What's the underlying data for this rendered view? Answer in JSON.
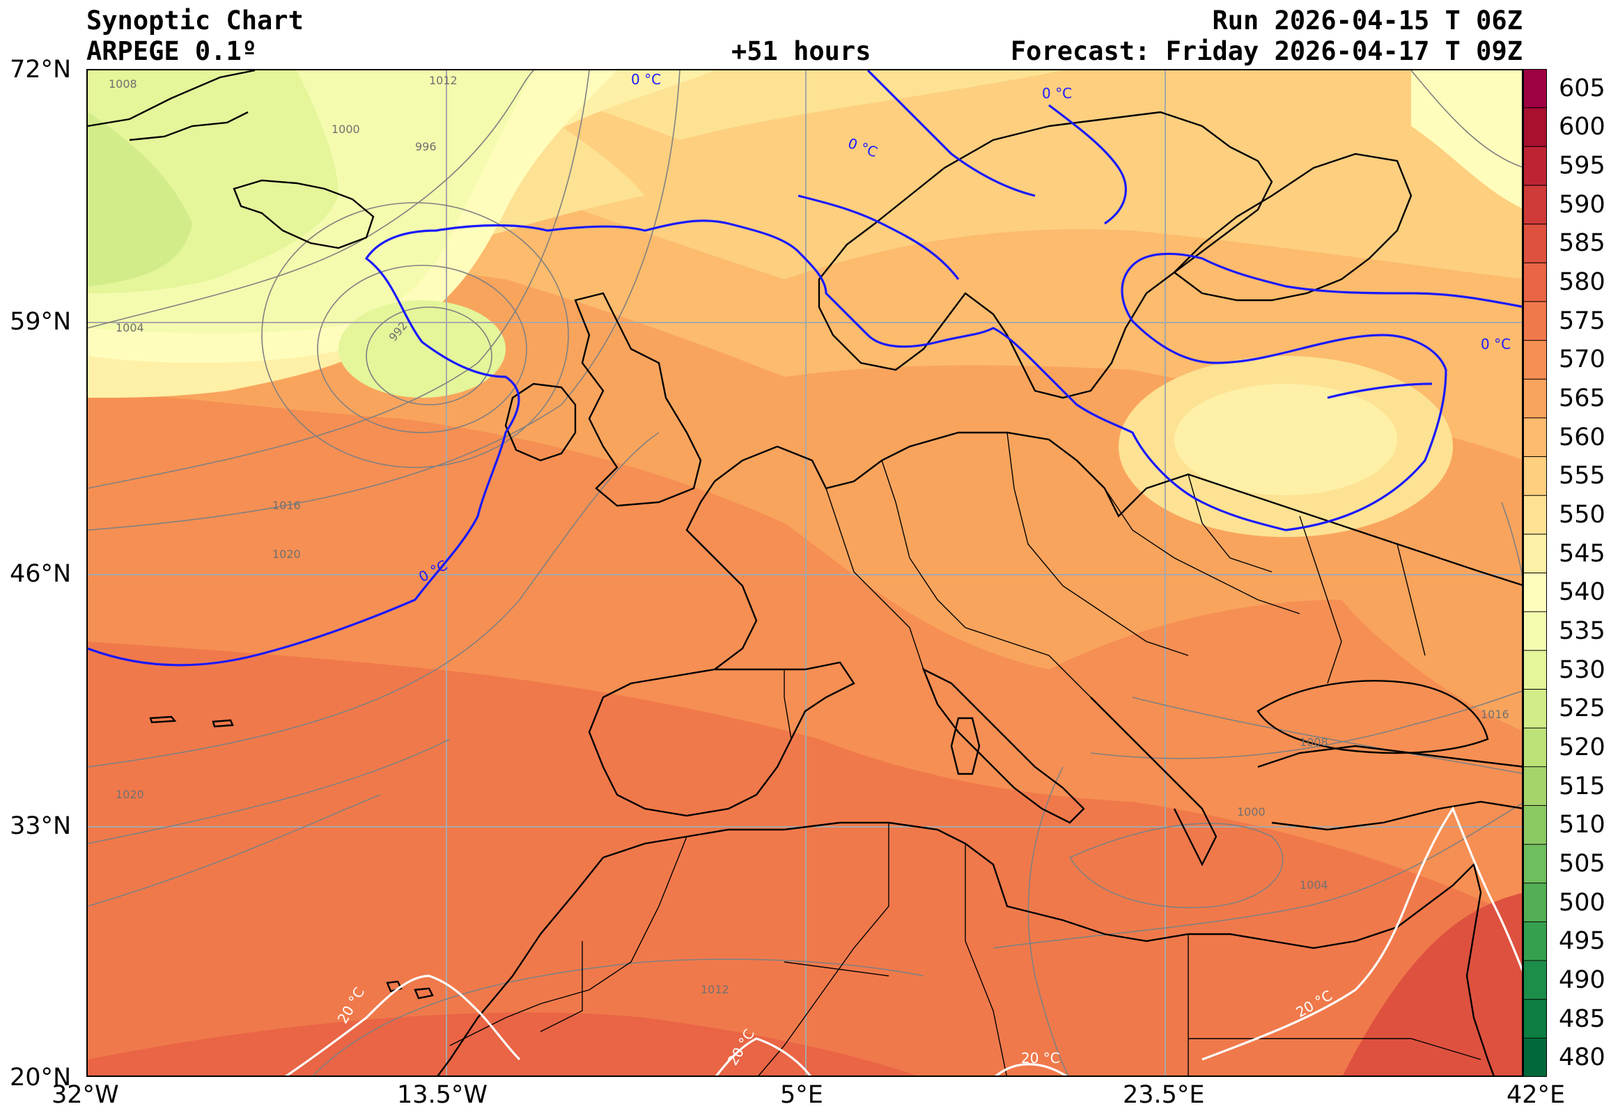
{
  "header": {
    "title": "Synoptic Chart",
    "model": "ARPEGE 0.1º",
    "lead_time": "+51 hours",
    "run": "Run 2026-04-15 T 06Z",
    "forecast": "Forecast: Friday 2026-04-17 T 09Z"
  },
  "map": {
    "lat_labels": [
      "72°N",
      "59°N",
      "46°N",
      "33°N",
      "20°N"
    ],
    "lon_labels": [
      "32°W",
      "13.5°W",
      "5°E",
      "23.5°E",
      "42°E"
    ],
    "isobar_labels": [
      "1008",
      "1012",
      "1000",
      "996",
      "1004",
      "992",
      "1016",
      "1020",
      "1000",
      "1004",
      "1008",
      "1012",
      "1016",
      "1020"
    ],
    "isotherm_labels": {
      "zero": "0 °C",
      "twenty": "20 °C"
    },
    "colors": {
      "isotherm_zero": "#1a1aff",
      "isotherm_twenty": "#ffffff",
      "isobar": "#808080",
      "coast": "#000000"
    }
  },
  "colorbar": {
    "labels": [
      "605",
      "600",
      "595",
      "590",
      "585",
      "580",
      "575",
      "570",
      "565",
      "560",
      "555",
      "550",
      "545",
      "540",
      "535",
      "530",
      "525",
      "520",
      "515",
      "510",
      "505",
      "500",
      "495",
      "490",
      "485",
      "480"
    ],
    "colors": [
      "#00683a",
      "#0d7d41",
      "#1d8d4a",
      "#35a04e",
      "#52af55",
      "#6fbd5d",
      "#8bc963",
      "#a5d46a",
      "#bde278",
      "#d1ec88",
      "#e4f59a",
      "#f4fbae",
      "#fffdbc",
      "#fef0a7",
      "#fde293",
      "#fdcf7f",
      "#fcbb6d",
      "#f9a45d",
      "#f68f53",
      "#f0794b",
      "#e96545",
      "#de513f",
      "#cf3b39",
      "#bd2433",
      "#a8102e",
      "#9e0142"
    ]
  }
}
